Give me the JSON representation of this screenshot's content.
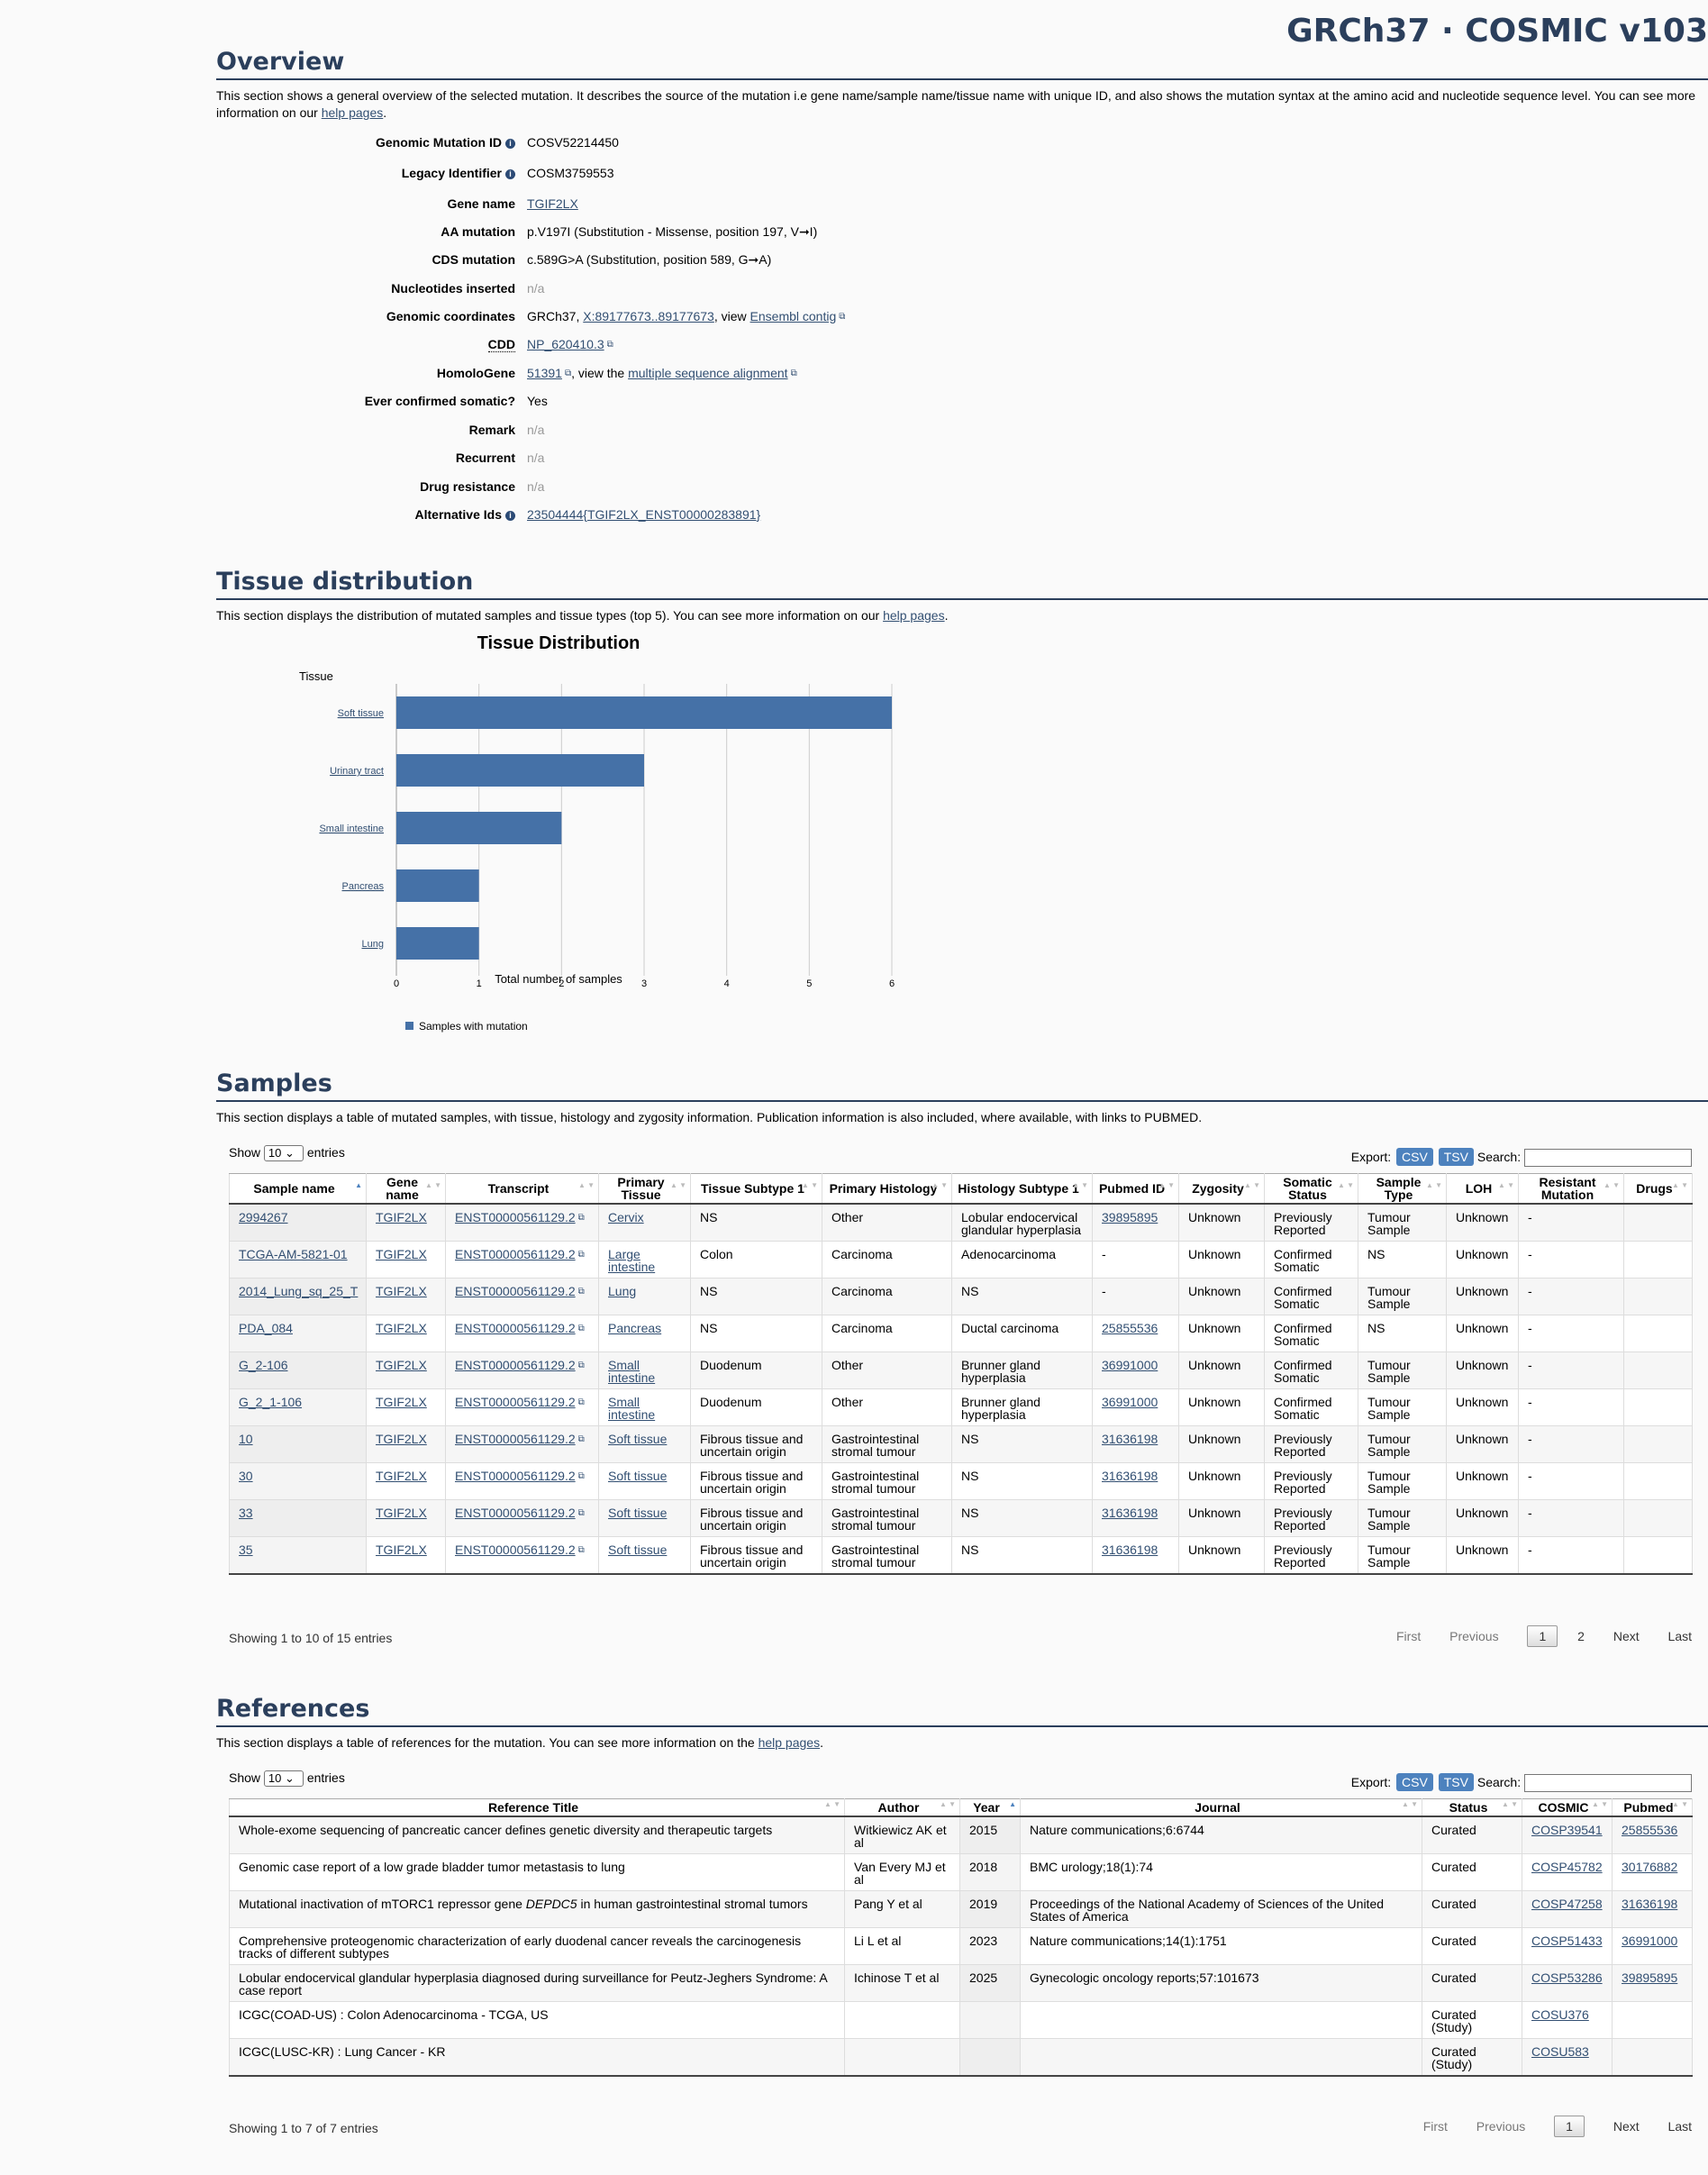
{
  "brand": "GRCh37 · COSMIC v103",
  "overview": {
    "title": "Overview",
    "desc_pre": "This section shows a general overview of the selected mutation. It describes the source of the mutation i.e gene name/sample name/tissue name with unique ID, and also shows the mutation syntax at the amino acid and nucleotide sequence level. You can see more information on our ",
    "desc_link": "help pages",
    "desc_post": ".",
    "rows": {
      "gmid_label": "Genomic Mutation ID",
      "gmid_value": "COSV52214450",
      "legacy_label": "Legacy Identifier",
      "legacy_value": "COSM3759553",
      "gene_label": "Gene name",
      "gene_value": "TGIF2LX",
      "aa_label": "AA mutation",
      "aa_value": "p.V197I (Substitution - Missense, position 197, V➞I)",
      "cds_label": "CDS mutation",
      "cds_value": "c.589G>A (Substitution, position 589, G➞A)",
      "nuc_label": "Nucleotides inserted",
      "nuc_value": "n/a",
      "coord_label": "Genomic coordinates",
      "coord_pre": "GRCh37, ",
      "coord_link": "X:89177673..89177673",
      "coord_mid": ", view ",
      "coord_link2": "Ensembl contig",
      "cdd_label": "CDD",
      "cdd_value": "NP_620410.3",
      "homolo_label": "HomoloGene",
      "homolo_value": "51391",
      "homolo_mid": ", view the ",
      "homolo_link2": "multiple sequence alignment",
      "somatic_label": "Ever confirmed somatic?",
      "somatic_value": "Yes",
      "remark_label": "Remark",
      "remark_value": "n/a",
      "recurrent_label": "Recurrent",
      "recurrent_value": "n/a",
      "drug_label": "Drug resistance",
      "drug_value": "n/a",
      "alt_label": "Alternative Ids",
      "alt_value": "23504444{TGIF2LX_ENST00000283891}"
    }
  },
  "tissue": {
    "title": "Tissue distribution",
    "desc_pre": "This section displays the distribution of mutated samples and tissue types (top 5). You can see more information on our ",
    "desc_link": "help pages",
    "desc_post": "."
  },
  "chart_data": {
    "type": "bar",
    "orientation": "horizontal",
    "title": "Tissue Distribution",
    "ylabel": "Tissue",
    "xlabel": "Total number of samples",
    "categories": [
      "Soft tissue",
      "Urinary tract",
      "Small intestine",
      "Pancreas",
      "Lung"
    ],
    "series": [
      {
        "name": "Samples with mutation",
        "values": [
          6,
          3,
          2,
          1,
          1
        ],
        "color": "#4571a7"
      }
    ],
    "xlim": [
      0,
      6
    ],
    "xticks": [
      "0",
      "1",
      "2",
      "3",
      "4",
      "5",
      "6"
    ],
    "grid": true,
    "legend": "bottom-left"
  },
  "samples": {
    "title": "Samples",
    "desc": "This section displays a table of mutated samples, with tissue, histology and zygosity information. Publication information is also included, where available, with links to PUBMED.",
    "show": "Show",
    "entries": "entries",
    "page_size": "10",
    "export": "Export:",
    "csv": "CSV",
    "tsv": "TSV",
    "search": "Search:",
    "columns": [
      "Sample name",
      "Gene name",
      "Transcript",
      "Primary Tissue",
      "Tissue Subtype 1",
      "Primary Histology",
      "Histology Subtype 1",
      "Pubmed ID",
      "Zygosity",
      "Somatic Status",
      "Sample Type",
      "LOH",
      "Resistant Mutation",
      "Drugs"
    ],
    "rows": [
      [
        "2994267",
        "TGIF2LX",
        "ENST00000561129.2",
        "Cervix",
        "NS",
        "Other",
        "Lobular endocervical glandular hyperplasia",
        "39895895",
        "Unknown",
        "Previously Reported",
        "Tumour Sample",
        "Unknown",
        "-",
        ""
      ],
      [
        "TCGA-AM-5821-01",
        "TGIF2LX",
        "ENST00000561129.2",
        "Large intestine",
        "Colon",
        "Carcinoma",
        "Adenocarcinoma",
        "-",
        "Unknown",
        "Confirmed Somatic",
        "NS",
        "Unknown",
        "-",
        ""
      ],
      [
        "2014_Lung_sq_25_T",
        "TGIF2LX",
        "ENST00000561129.2",
        "Lung",
        "NS",
        "Carcinoma",
        "NS",
        "-",
        "Unknown",
        "Confirmed Somatic",
        "Tumour Sample",
        "Unknown",
        "-",
        ""
      ],
      [
        "PDA_084",
        "TGIF2LX",
        "ENST00000561129.2",
        "Pancreas",
        "NS",
        "Carcinoma",
        "Ductal carcinoma",
        "25855536",
        "Unknown",
        "Confirmed Somatic",
        "NS",
        "Unknown",
        "-",
        ""
      ],
      [
        "G_2-106",
        "TGIF2LX",
        "ENST00000561129.2",
        "Small intestine",
        "Duodenum",
        "Other",
        "Brunner gland hyperplasia",
        "36991000",
        "Unknown",
        "Confirmed Somatic",
        "Tumour Sample",
        "Unknown",
        "-",
        ""
      ],
      [
        "G_2_1-106",
        "TGIF2LX",
        "ENST00000561129.2",
        "Small intestine",
        "Duodenum",
        "Other",
        "Brunner gland hyperplasia",
        "36991000",
        "Unknown",
        "Confirmed Somatic",
        "Tumour Sample",
        "Unknown",
        "-",
        ""
      ],
      [
        "10",
        "TGIF2LX",
        "ENST00000561129.2",
        "Soft tissue",
        "Fibrous tissue and uncertain origin",
        "Gastrointestinal stromal tumour",
        "NS",
        "31636198",
        "Unknown",
        "Previously Reported",
        "Tumour Sample",
        "Unknown",
        "-",
        ""
      ],
      [
        "30",
        "TGIF2LX",
        "ENST00000561129.2",
        "Soft tissue",
        "Fibrous tissue and uncertain origin",
        "Gastrointestinal stromal tumour",
        "NS",
        "31636198",
        "Unknown",
        "Previously Reported",
        "Tumour Sample",
        "Unknown",
        "-",
        ""
      ],
      [
        "33",
        "TGIF2LX",
        "ENST00000561129.2",
        "Soft tissue",
        "Fibrous tissue and uncertain origin",
        "Gastrointestinal stromal tumour",
        "NS",
        "31636198",
        "Unknown",
        "Previously Reported",
        "Tumour Sample",
        "Unknown",
        "-",
        ""
      ],
      [
        "35",
        "TGIF2LX",
        "ENST00000561129.2",
        "Soft tissue",
        "Fibrous tissue and uncertain origin",
        "Gastrointestinal stromal tumour",
        "NS",
        "31636198",
        "Unknown",
        "Previously Reported",
        "Tumour Sample",
        "Unknown",
        "-",
        ""
      ]
    ],
    "info": "Showing 1 to 10 of 15 entries",
    "pager": {
      "first": "First",
      "previous": "Previous",
      "pages": [
        "1",
        "2"
      ],
      "next": "Next",
      "last": "Last"
    }
  },
  "references": {
    "title": "References",
    "desc_pre": "This section displays a table of references for the mutation. You can see more information on the ",
    "desc_link": "help pages",
    "desc_post": ".",
    "show": "Show",
    "entries": "entries",
    "page_size": "10",
    "export": "Export:",
    "csv": "CSV",
    "tsv": "TSV",
    "search": "Search:",
    "columns": [
      "Reference Title",
      "Author",
      "Year",
      "Journal",
      "Status",
      "COSMIC",
      "Pubmed"
    ],
    "rows": [
      {
        "title": "Whole-exome sequencing of pancreatic cancer defines genetic diversity and therapeutic targets",
        "author": "Witkiewicz AK et al",
        "year": "2015",
        "journal": "Nature communications;6:6744",
        "status": "Curated",
        "cosmic": "COSP39541",
        "pubmed": "25855536"
      },
      {
        "title": "Genomic case report of a low grade bladder tumor metastasis to lung",
        "author": "Van Every MJ et al",
        "year": "2018",
        "journal": "BMC urology;18(1):74",
        "status": "Curated",
        "cosmic": "COSP45782",
        "pubmed": "30176882"
      },
      {
        "title_pre": "Mutational inactivation of mTORC1 repressor gene ",
        "title_em": "DEPDC5",
        "title_post": " in human gastrointestinal stromal tumors",
        "author": "Pang Y et al",
        "year": "2019",
        "journal": "Proceedings of the National Academy of Sciences of the United States of America",
        "status": "Curated",
        "cosmic": "COSP47258",
        "pubmed": "31636198"
      },
      {
        "title": "Comprehensive proteogenomic characterization of early duodenal cancer reveals the carcinogenesis tracks of different subtypes",
        "author": "Li L et al",
        "year": "2023",
        "journal": "Nature communications;14(1):1751",
        "status": "Curated",
        "cosmic": "COSP51433",
        "pubmed": "36991000"
      },
      {
        "title": "Lobular endocervical glandular hyperplasia diagnosed during surveillance for Peutz-Jeghers Syndrome: A case report",
        "author": "Ichinose T et al",
        "year": "2025",
        "journal": "Gynecologic oncology reports;57:101673",
        "status": "Curated",
        "cosmic": "COSP53286",
        "pubmed": "39895895"
      },
      {
        "title": "ICGC(COAD-US) : Colon Adenocarcinoma - TCGA, US",
        "author": "",
        "year": "",
        "journal": "",
        "status": "Curated (Study)",
        "cosmic": "COSU376",
        "pubmed": ""
      },
      {
        "title": "ICGC(LUSC-KR) : Lung Cancer - KR",
        "author": "",
        "year": "",
        "journal": "",
        "status": "Curated (Study)",
        "cosmic": "COSU583",
        "pubmed": ""
      }
    ],
    "info": "Showing 1 to 7 of 7 entries",
    "pager": {
      "first": "First",
      "previous": "Previous",
      "pages": [
        "1"
      ],
      "next": "Next",
      "last": "Last"
    }
  }
}
